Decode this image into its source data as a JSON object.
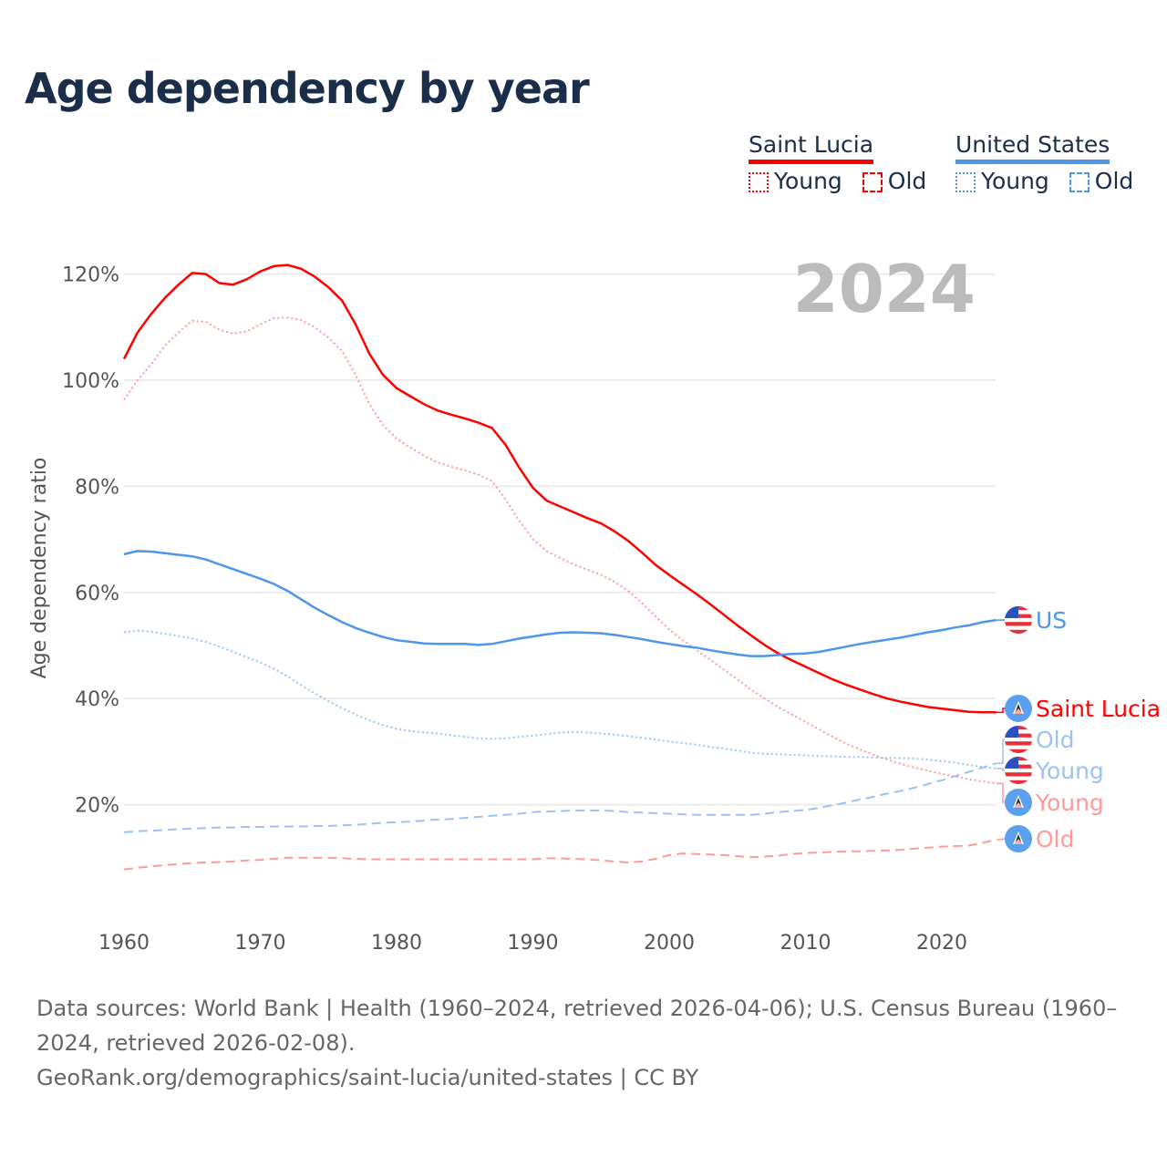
{
  "chart_data": {
    "type": "line",
    "title": "Age dependency by year",
    "ylabel": "Age dependency ratio",
    "xlabel": "",
    "year_watermark": "2024",
    "xlim": [
      1960,
      2024
    ],
    "ylim": [
      0,
      125
    ],
    "grid": true,
    "x_ticks": [
      1960,
      1970,
      1980,
      1990,
      2000,
      2010,
      2020
    ],
    "y_ticks": [
      {
        "v": 20,
        "label": "20%"
      },
      {
        "v": 40,
        "label": "40%"
      },
      {
        "v": 60,
        "label": "60%"
      },
      {
        "v": 80,
        "label": "80%"
      },
      {
        "v": 100,
        "label": "100%"
      },
      {
        "v": 120,
        "label": "120%"
      }
    ],
    "legend": {
      "placement": "top-right",
      "groups": [
        {
          "name": "Saint Lucia",
          "color": "#ff0000",
          "young": "Young",
          "old": "Old"
        },
        {
          "name": "United States",
          "color": "#4d96ea",
          "young": "Young",
          "old": "Old"
        }
      ]
    },
    "series": [
      {
        "name": "Saint Lucia",
        "end_label": "Saint Lucia",
        "flag": "saint-lucia",
        "color": "#ff0000",
        "style": "solid",
        "start": 1960,
        "values": [
          104,
          109,
          112.5,
          115.5,
          118,
          120.2,
          120,
          118.3,
          118,
          119,
          120.5,
          121.5,
          121.7,
          121,
          119.5,
          117.5,
          115,
          110.5,
          105,
          101,
          98.5,
          97,
          95.5,
          94.3,
          93.5,
          92.8,
          92,
          91,
          87.8,
          83.5,
          79.7,
          77.3,
          76.2,
          75.1,
          74,
          73,
          71.5,
          69.7,
          67.5,
          65.2,
          63.3,
          61.5,
          59.7,
          57.8,
          55.8,
          53.8,
          51.9,
          50.1,
          48.5,
          47.2,
          46,
          44.8,
          43.6,
          42.6,
          41.7,
          40.8,
          40,
          39.4,
          38.9,
          38.4,
          38.1,
          37.8,
          37.5,
          37.4,
          37.4
        ]
      },
      {
        "name": "Saint Lucia Young",
        "end_label": "Young",
        "flag": "saint-lucia",
        "color": "#ff9a9a",
        "style": "dotted",
        "start": 1960,
        "values": [
          96.3,
          100,
          103,
          106.5,
          109,
          111.2,
          111,
          109.5,
          108.8,
          109.2,
          110.5,
          111.7,
          111.8,
          111.3,
          110,
          108,
          105.5,
          101,
          95.5,
          91.5,
          89,
          87.3,
          85.8,
          84.5,
          83.7,
          83,
          82.2,
          81,
          77.5,
          73.5,
          70,
          67.8,
          66.5,
          65.3,
          64.3,
          63.3,
          62,
          60.3,
          58,
          55.5,
          53,
          51,
          49.2,
          47.3,
          45.5,
          43.6,
          41.7,
          40,
          38.4,
          37,
          35.6,
          34.2,
          32.8,
          31.5,
          30.4,
          29.4,
          28.5,
          27.7,
          27,
          26.4,
          25.8,
          25.3,
          24.8,
          24.4,
          24.0
        ]
      },
      {
        "name": "Saint Lucia Old",
        "end_label": "Old",
        "flag": "saint-lucia",
        "color": "#ff9a9a",
        "style": "dashed",
        "start": 1960,
        "values": [
          7.8,
          8.1,
          8.4,
          8.6,
          8.8,
          9,
          9.1,
          9.2,
          9.3,
          9.5,
          9.6,
          9.8,
          10,
          10,
          10,
          10,
          9.9,
          9.8,
          9.7,
          9.7,
          9.7,
          9.7,
          9.7,
          9.7,
          9.7,
          9.7,
          9.7,
          9.7,
          9.7,
          9.7,
          9.7,
          9.9,
          9.9,
          9.8,
          9.7,
          9.5,
          9.3,
          9.1,
          9.3,
          9.8,
          10.5,
          10.8,
          10.7,
          10.6,
          10.5,
          10.3,
          10.1,
          10.2,
          10.4,
          10.7,
          10.9,
          11,
          11.1,
          11.2,
          11.2,
          11.3,
          11.4,
          11.5,
          11.7,
          11.9,
          12.1,
          12.2,
          12.3,
          12.8,
          13.4
        ]
      },
      {
        "name": "United States",
        "end_label": "US",
        "flag": "united-states",
        "color": "#4d96ea",
        "style": "solid",
        "start": 1960,
        "values": [
          67.2,
          67.8,
          67.7,
          67.4,
          67.1,
          66.8,
          66.2,
          65.3,
          64.4,
          63.5,
          62.6,
          61.6,
          60.3,
          58.7,
          57.1,
          55.7,
          54.4,
          53.3,
          52.4,
          51.6,
          51,
          50.7,
          50.4,
          50.3,
          50.3,
          50.3,
          50.1,
          50.3,
          50.8,
          51.3,
          51.7,
          52.1,
          52.4,
          52.5,
          52.4,
          52.3,
          52,
          51.6,
          51.2,
          50.7,
          50.3,
          49.9,
          49.6,
          49.1,
          48.7,
          48.3,
          48,
          48,
          48.2,
          48.4,
          48.5,
          48.8,
          49.3,
          49.8,
          50.3,
          50.7,
          51.1,
          51.5,
          52,
          52.5,
          52.9,
          53.4,
          53.8,
          54.4,
          54.8
        ]
      },
      {
        "name": "United States Young",
        "end_label": "Young",
        "flag": "united-states",
        "color": "#9cc3f0",
        "style": "dotted",
        "start": 1960,
        "values": [
          52.5,
          52.8,
          52.6,
          52.2,
          51.8,
          51.3,
          50.7,
          49.8,
          48.8,
          47.8,
          46.8,
          45.6,
          44.2,
          42.5,
          41,
          39.5,
          38.2,
          37,
          35.9,
          35,
          34.3,
          33.9,
          33.6,
          33.4,
          33.1,
          32.8,
          32.5,
          32.4,
          32.5,
          32.8,
          33,
          33.3,
          33.6,
          33.7,
          33.6,
          33.4,
          33.2,
          32.9,
          32.6,
          32.3,
          31.9,
          31.6,
          31.3,
          30.9,
          30.6,
          30.2,
          29.8,
          29.6,
          29.5,
          29.4,
          29.3,
          29.2,
          29.1,
          29,
          29,
          28.9,
          28.8,
          28.8,
          28.7,
          28.5,
          28.2,
          27.9,
          27.5,
          27.1,
          26.8
        ]
      },
      {
        "name": "United States Old",
        "end_label": "Old",
        "flag": "united-states",
        "color": "#9cc3f0",
        "style": "dashed",
        "start": 1960,
        "values": [
          14.8,
          15,
          15.1,
          15.2,
          15.4,
          15.5,
          15.6,
          15.7,
          15.7,
          15.8,
          15.8,
          15.9,
          15.9,
          15.9,
          16,
          16,
          16.1,
          16.2,
          16.4,
          16.6,
          16.7,
          16.8,
          17,
          17.2,
          17.3,
          17.5,
          17.7,
          17.9,
          18.1,
          18.3,
          18.6,
          18.7,
          18.8,
          18.9,
          18.9,
          18.9,
          18.8,
          18.6,
          18.5,
          18.4,
          18.3,
          18.2,
          18.1,
          18.1,
          18.1,
          18.1,
          18.1,
          18.3,
          18.6,
          18.8,
          19,
          19.4,
          19.9,
          20.4,
          21,
          21.5,
          22.1,
          22.6,
          23.2,
          23.9,
          24.6,
          25.4,
          26.2,
          27,
          27.8
        ]
      }
    ]
  },
  "footer": {
    "sources": "Data sources: World Bank | Health (1960–2024, retrieved 2026-04-06); U.S. Census Bureau (1960–2024, retrieved 2026-02-08).",
    "link": "GeoRank.org/demographics/saint-lucia/united-states",
    "license": "CC BY"
  }
}
